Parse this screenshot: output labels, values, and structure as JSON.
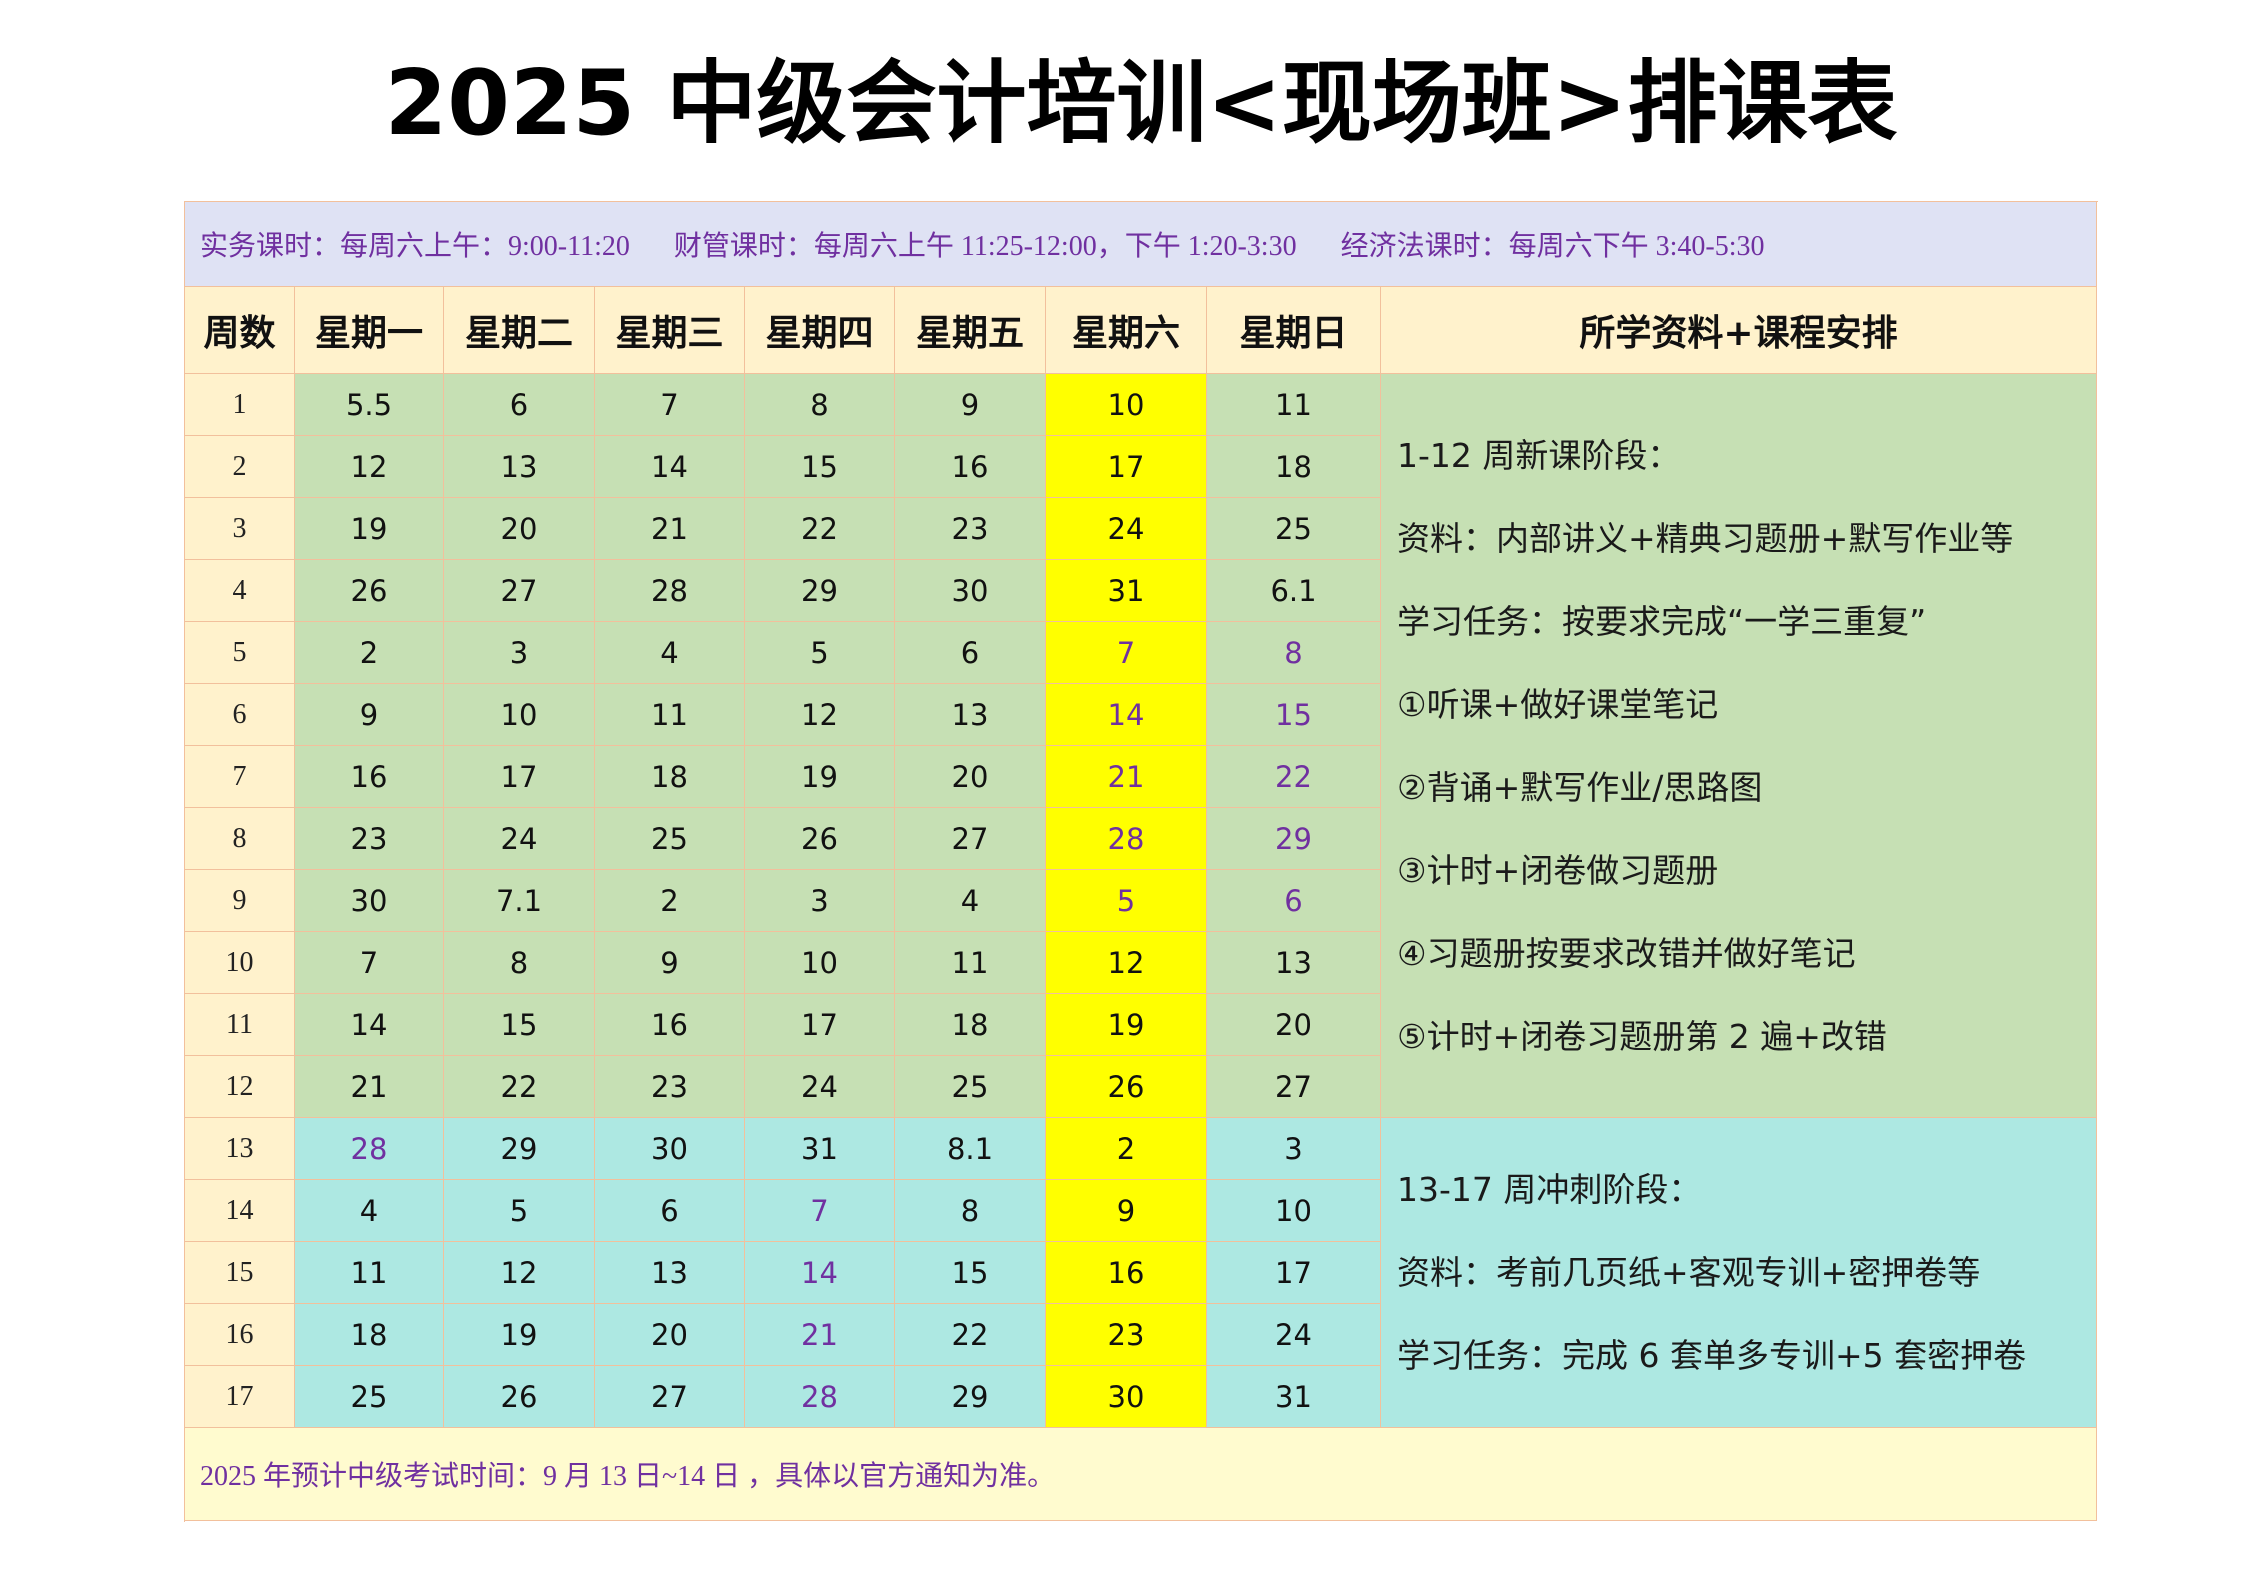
{
  "title": "2025 中级会计培训<现场班>排课表",
  "info": [
    "实务课时：每周六上午：9:00-11:20",
    "财管课时：每周六上午 11:25-12:00，下午 1:20-3:30",
    "经济法课时：每周六下午 3:40-5:30"
  ],
  "headers": [
    "周数",
    "星期一",
    "星期二",
    "星期三",
    "星期四",
    "星期五",
    "星期六",
    "星期日",
    "所学资料+课程安排"
  ],
  "weeks": [
    {
      "week": "1",
      "days": [
        "5.5",
        "6",
        "7",
        "8",
        "9",
        "10",
        "11"
      ],
      "purple": []
    },
    {
      "week": "2",
      "days": [
        "12",
        "13",
        "14",
        "15",
        "16",
        "17",
        "18"
      ],
      "purple": []
    },
    {
      "week": "3",
      "days": [
        "19",
        "20",
        "21",
        "22",
        "23",
        "24",
        "25"
      ],
      "purple": []
    },
    {
      "week": "4",
      "days": [
        "26",
        "27",
        "28",
        "29",
        "30",
        "31",
        "6.1"
      ],
      "purple": []
    },
    {
      "week": "5",
      "days": [
        "2",
        "3",
        "4",
        "5",
        "6",
        "7",
        "8"
      ],
      "purple": [
        5,
        6
      ]
    },
    {
      "week": "6",
      "days": [
        "9",
        "10",
        "11",
        "12",
        "13",
        "14",
        "15"
      ],
      "purple": [
        5,
        6
      ]
    },
    {
      "week": "7",
      "days": [
        "16",
        "17",
        "18",
        "19",
        "20",
        "21",
        "22"
      ],
      "purple": [
        5,
        6
      ]
    },
    {
      "week": "8",
      "days": [
        "23",
        "24",
        "25",
        "26",
        "27",
        "28",
        "29"
      ],
      "purple": [
        5,
        6
      ]
    },
    {
      "week": "9",
      "days": [
        "30",
        "7.1",
        "2",
        "3",
        "4",
        "5",
        "6"
      ],
      "purple": [
        5,
        6
      ]
    },
    {
      "week": "10",
      "days": [
        "7",
        "8",
        "9",
        "10",
        "11",
        "12",
        "13"
      ],
      "purple": []
    },
    {
      "week": "11",
      "days": [
        "14",
        "15",
        "16",
        "17",
        "18",
        "19",
        "20"
      ],
      "purple": []
    },
    {
      "week": "12",
      "days": [
        "21",
        "22",
        "23",
        "24",
        "25",
        "26",
        "27"
      ],
      "purple": []
    },
    {
      "week": "13",
      "days": [
        "28",
        "29",
        "30",
        "31",
        "8.1",
        "2",
        "3"
      ],
      "purple": [
        0
      ]
    },
    {
      "week": "14",
      "days": [
        "4",
        "5",
        "6",
        "7",
        "8",
        "9",
        "10"
      ],
      "purple": [
        3
      ]
    },
    {
      "week": "15",
      "days": [
        "11",
        "12",
        "13",
        "14",
        "15",
        "16",
        "17"
      ],
      "purple": [
        3
      ]
    },
    {
      "week": "16",
      "days": [
        "18",
        "19",
        "20",
        "21",
        "22",
        "23",
        "24"
      ],
      "purple": [
        3
      ]
    },
    {
      "week": "17",
      "days": [
        "25",
        "26",
        "27",
        "28",
        "29",
        "30",
        "31"
      ],
      "purple": [
        3
      ]
    }
  ],
  "phases": [
    {
      "lines": [
        "1-12 周新课阶段：",
        "资料：内部讲义+精典习题册+默写作业等",
        "学习任务：按要求完成“一学三重复”",
        "①听课+做好课堂笔记",
        "②背诵+默写作业/思路图",
        "③计时+闭卷做习题册",
        "④习题册按要求改错并做好笔记",
        "⑤计时+闭卷习题册第 2 遍+改错"
      ]
    },
    {
      "lines": [
        "13-17 周冲刺阶段：",
        "资料：考前几页纸+客观专训+密押卷等",
        "学习任务：完成 6 套单多专训+5 套密押卷"
      ]
    }
  ],
  "footer": "2025 年预计中级考试时间：9 月 13 日~14 日 ，具体以官方通知为准。",
  "colors": {
    "info_bg": "#dfe2f4",
    "header_bg": "#fff2cc",
    "week_col_bg": "#fff2cc",
    "phase1_bg": "#c6e0b4",
    "phase2_bg": "#ade8e2",
    "saturday_bg": "#ffff00",
    "footer_bg": "#fffbcf",
    "accent_text": "#7030a0"
  }
}
